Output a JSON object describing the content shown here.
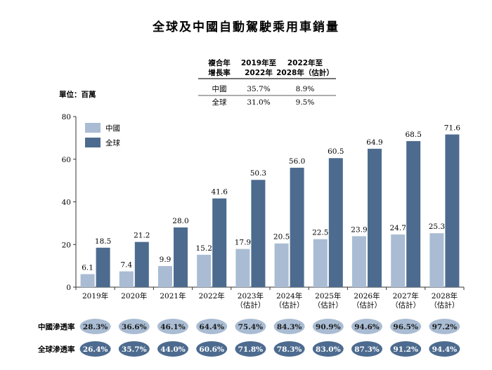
{
  "title": "全球及中國自動駕駛乘用車銷量",
  "unit_label": "單位：百萬",
  "cagr_table": {
    "header_label": [
      "複合年",
      "增長率"
    ],
    "header_period1": [
      "2019年至",
      "2022年"
    ],
    "header_period2": [
      "2022年至",
      "2028年（估計）"
    ],
    "rows": [
      {
        "label": "中國",
        "v1": "35.7%",
        "v2": "8.9%"
      },
      {
        "label": "全球",
        "v1": "31.0%",
        "v2": "9.5%"
      }
    ]
  },
  "penetration": {
    "china_label": "中國滲透率",
    "china_values": [
      "28.3%",
      "36.6%",
      "46.1%",
      "64.4%",
      "75.4%",
      "84.3%",
      "90.9%",
      "94.6%",
      "96.5%",
      "97.2%"
    ],
    "global_label": "全球滲透率",
    "global_values": [
      "26.4%",
      "35.7%",
      "44.0%",
      "60.6%",
      "71.8%",
      "78.3%",
      "83.0%",
      "87.3%",
      "91.2%",
      "94.4%"
    ]
  },
  "colors": {
    "china": "#a9bcd3",
    "global": "#4d6b8f",
    "oval_china": "#a9bcd3",
    "oval_global": "#4d6b8f"
  },
  "chart_data": {
    "type": "bar",
    "title": "全球及中國自動駕駛乘用車銷量",
    "categories": [
      [
        "2019年"
      ],
      [
        "2020年"
      ],
      [
        "2021年"
      ],
      [
        "2022年"
      ],
      [
        "2023年",
        "（估計）"
      ],
      [
        "2024年",
        "（估計）"
      ],
      [
        "2025年",
        "（估計）"
      ],
      [
        "2026年",
        "（估計）"
      ],
      [
        "2027年",
        "（估計）"
      ],
      [
        "2028年",
        "（估計）"
      ]
    ],
    "series": [
      {
        "name": "中國",
        "values": [
          6.1,
          7.4,
          9.9,
          15.2,
          17.9,
          20.5,
          22.5,
          23.9,
          24.7,
          25.3
        ]
      },
      {
        "name": "全球",
        "values": [
          18.5,
          21.2,
          28.0,
          41.6,
          50.3,
          56.0,
          60.5,
          64.9,
          68.5,
          71.6
        ]
      }
    ],
    "ylim": [
      0,
      80
    ],
    "yticks": [
      0,
      20,
      40,
      60,
      80
    ],
    "legend": "top-left",
    "grid": false
  }
}
